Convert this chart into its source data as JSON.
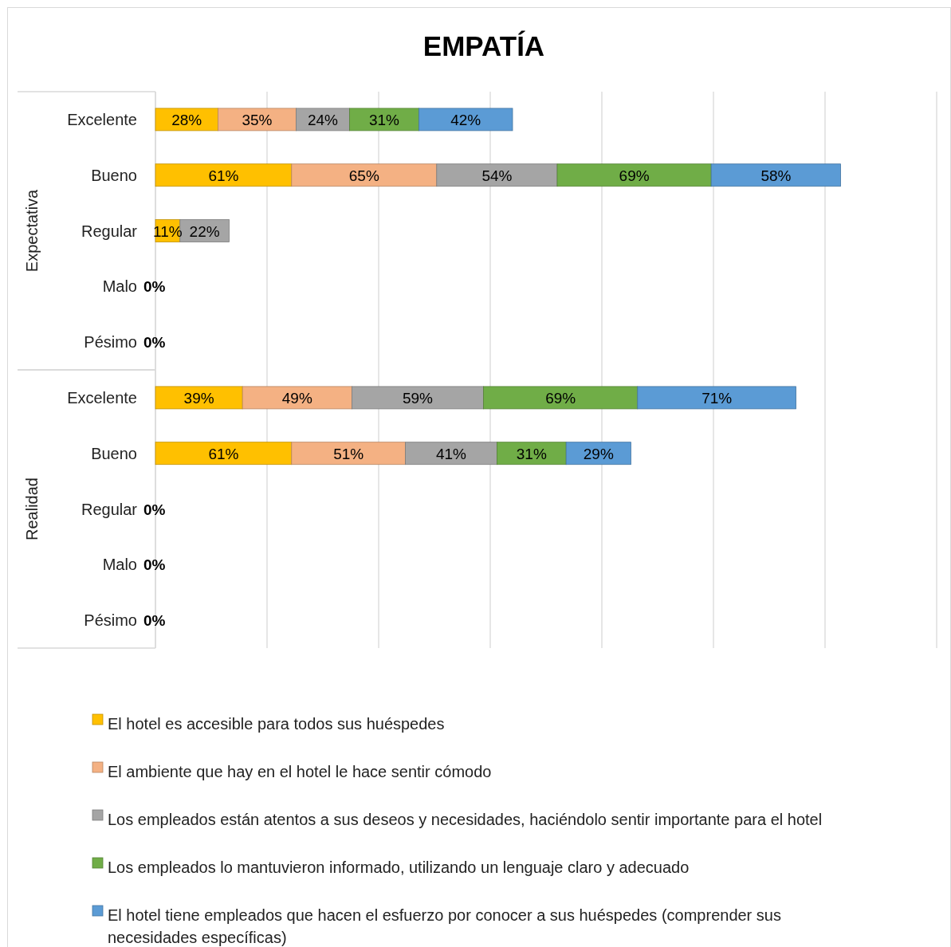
{
  "chart_data": {
    "type": "bar",
    "title": "EMPATÍA",
    "orientation": "horizontal",
    "stacked": true,
    "categories": [
      "Excelente",
      "Bueno",
      "Regular",
      "Malo",
      "Pésimo",
      "Excelente",
      "Bueno",
      "Regular",
      "Malo",
      "Pésimo"
    ],
    "annotations": [
      "Expectativa",
      "Realidad"
    ],
    "xlim": [
      0,
      350
    ],
    "xticks": [
      {
        "value": 0,
        "label": null
      },
      {
        "value": 50,
        "label": null
      },
      {
        "value": 100,
        "label": null
      },
      {
        "value": 150,
        "label": null
      },
      {
        "value": 200,
        "label": null
      },
      {
        "value": 250,
        "label": null
      },
      {
        "value": 300,
        "label": null
      },
      {
        "value": 350,
        "label": null
      }
    ],
    "tick_labels": "y",
    "grid": "x",
    "legend": "bottom",
    "series": [
      {
        "name": "El hotel es accesible para todos sus huéspedes",
        "color": "#ffc000",
        "values": [
          28,
          61,
          11,
          0,
          0,
          39,
          61,
          0,
          0,
          0
        ],
        "value_labels": [
          "28%",
          "61%",
          "11%",
          "0%",
          "0%",
          "39%",
          "61%",
          "0%",
          "0%",
          "0%"
        ]
      },
      {
        "name": "El ambiente que hay en el hotel le hace sentir cómodo",
        "color": "#f4b183",
        "values": [
          35,
          65,
          0,
          0,
          0,
          49,
          51,
          0,
          0,
          0
        ],
        "value_labels": [
          "35%",
          "65%",
          null,
          null,
          null,
          "49%",
          "51%",
          null,
          null,
          null
        ]
      },
      {
        "name": "Los empleados están atentos a sus deseos y necesidades, haciéndolo sentir importante para el hotel",
        "color": "#a5a5a5",
        "values": [
          24,
          54,
          22,
          0,
          0,
          59,
          41,
          0,
          0,
          0
        ],
        "value_labels": [
          "24%",
          "54%",
          "22%",
          null,
          null,
          "59%",
          "41%",
          null,
          null,
          null
        ]
      },
      {
        "name": "Los empleados lo mantuvieron informado, utilizando un lenguaje claro y adecuado",
        "color": "#70ad47",
        "values": [
          31,
          69,
          0,
          0,
          0,
          69,
          31,
          0,
          0,
          0
        ],
        "value_labels": [
          "31%",
          "69%",
          null,
          null,
          null,
          "69%",
          "31%",
          null,
          null,
          null
        ]
      },
      {
        "name": "El hotel tiene empleados que hacen el esfuerzo por conocer a sus huéspedes (comprender sus necesidades específicas)",
        "color": "#5b9bd5",
        "values": [
          42,
          58,
          0,
          0,
          0,
          71,
          29,
          0,
          0,
          0
        ],
        "value_labels": [
          "42%",
          "58%",
          null,
          null,
          null,
          "71%",
          "29%",
          null,
          null,
          null
        ]
      }
    ]
  }
}
